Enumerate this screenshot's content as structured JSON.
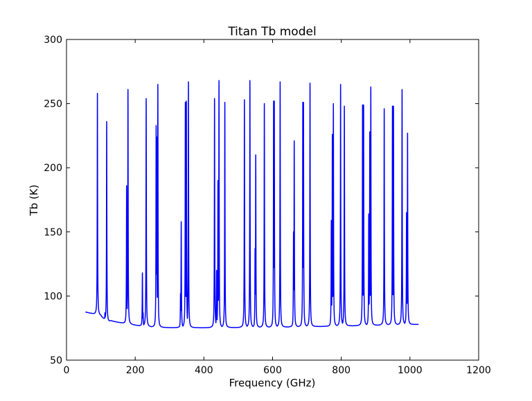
{
  "chart_data": {
    "type": "line",
    "title": "Titan Tb model",
    "xlabel": "Frequency (GHz)",
    "ylabel": "Tb (K)",
    "xlim": [
      0,
      1200
    ],
    "ylim": [
      50,
      300
    ],
    "xticks": [
      0,
      200,
      400,
      600,
      800,
      1000,
      1200
    ],
    "yticks": [
      50,
      100,
      150,
      200,
      250,
      300
    ],
    "grid": false,
    "color": "#0000ff",
    "series": [
      {
        "x_range": [
          55,
          1025
        ],
        "baseline": [
          [
            55,
            87.5
          ],
          [
            100,
            84.5
          ],
          [
            118,
            79.0
          ],
          [
            130,
            80.5
          ],
          [
            180,
            78.0
          ],
          [
            220,
            76.5
          ],
          [
            260,
            75.5
          ],
          [
            300,
            75.3
          ],
          [
            400,
            75.2
          ],
          [
            600,
            75.5
          ],
          [
            800,
            76.5
          ],
          [
            1000,
            77.7
          ],
          [
            1025,
            77.8
          ]
        ],
        "peaks": [
          [
            89,
            116
          ],
          [
            90,
            258
          ],
          [
            112,
            87
          ],
          [
            117,
            236
          ],
          [
            175,
            186
          ],
          [
            179,
            261
          ],
          [
            221,
            118
          ],
          [
            223,
            87
          ],
          [
            232,
            254
          ],
          [
            261,
            233
          ],
          [
            263,
            224
          ],
          [
            266,
            265
          ],
          [
            332,
            102
          ],
          [
            334,
            158
          ],
          [
            346,
            251
          ],
          [
            349,
            252
          ],
          [
            355,
            267
          ],
          [
            431,
            254
          ],
          [
            437,
            120
          ],
          [
            441,
            190
          ],
          [
            444,
            268
          ],
          [
            461,
            251
          ],
          [
            518,
            253
          ],
          [
            534,
            268
          ],
          [
            549,
            137
          ],
          [
            551,
            210
          ],
          [
            576,
            250
          ],
          [
            603,
            252
          ],
          [
            605,
            252
          ],
          [
            622,
            267
          ],
          [
            661,
            150
          ],
          [
            663,
            221
          ],
          [
            688,
            251
          ],
          [
            690,
            251
          ],
          [
            709,
            266
          ],
          [
            771,
            159
          ],
          [
            774,
            226
          ],
          [
            777,
            250
          ],
          [
            798,
            265
          ],
          [
            809,
            248
          ],
          [
            862,
            249
          ],
          [
            865,
            249
          ],
          [
            880,
            164
          ],
          [
            883,
            228
          ],
          [
            886,
            263
          ],
          [
            925,
            246
          ],
          [
            949,
            248
          ],
          [
            952,
            248
          ],
          [
            977,
            261
          ],
          [
            990,
            165
          ],
          [
            993,
            227
          ]
        ]
      }
    ]
  }
}
